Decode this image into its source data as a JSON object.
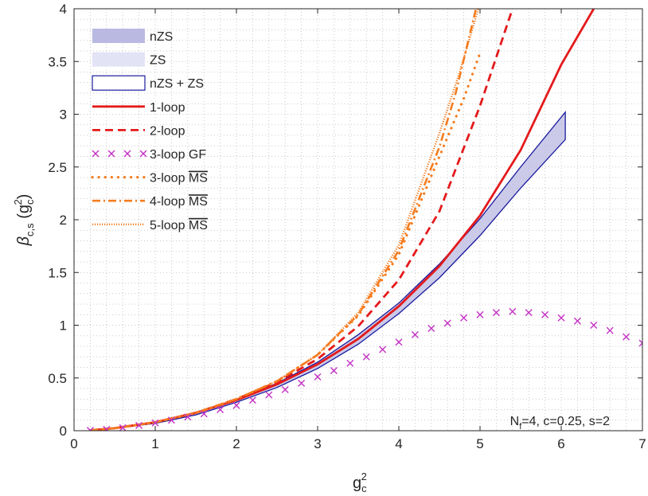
{
  "chart_data": {
    "type": "line",
    "xlabel_base": "g",
    "xlabel_sub": "c",
    "xlabel_sup": "2",
    "ylabel_base": "β",
    "ylabel_sub": "c,s",
    "ylabel_arg_open": " (g",
    "ylabel_arg_sub": "c",
    "ylabel_arg_sup": "2",
    "ylabel_arg_close": ")",
    "xlim": [
      0,
      7
    ],
    "ylim": [
      0,
      4
    ],
    "xticks": [
      0,
      1,
      2,
      3,
      4,
      5,
      6,
      7
    ],
    "xtick_labels": [
      "0",
      "1",
      "2",
      "3",
      "4",
      "5",
      "6",
      "7"
    ],
    "yticks": [
      0,
      0.5,
      1,
      1.5,
      2,
      2.5,
      3,
      3.5,
      4
    ],
    "ytick_labels": [
      "0",
      "0.5",
      "1",
      "1.5",
      "2",
      "2.5",
      "3",
      "3.5",
      "4"
    ],
    "grid": "minor-dotted",
    "annotation": {
      "base": "N",
      "sub": "f",
      "rest": "=4, c=0.25, s=2",
      "x": 6.85,
      "y": 0.1
    },
    "legend": {
      "placement": "top-left",
      "entries": [
        {
          "key": "nZS",
          "label": "nZS",
          "style": "band-dark"
        },
        {
          "key": "ZS",
          "label": "ZS",
          "style": "band-light"
        },
        {
          "key": "nZSZS",
          "label": "nZS + ZS",
          "style": "outline"
        },
        {
          "key": "loop1",
          "label": "1-loop",
          "style": "solid"
        },
        {
          "key": "loop2",
          "label": "2-loop",
          "style": "dashed"
        },
        {
          "key": "loop3gf",
          "label": "3-loop GF",
          "style": "cross"
        },
        {
          "key": "loop3ms",
          "label": "3-loop",
          "ms": "MS",
          "style": "dotted-big"
        },
        {
          "key": "loop4ms",
          "label": "4-loop",
          "ms": "MS",
          "style": "dashdot"
        },
        {
          "key": "loop5ms",
          "label": "5-loop",
          "ms": "MS",
          "style": "dotted-fine"
        }
      ]
    },
    "colors": {
      "red": "#e41a1c",
      "orange": "#f57c1f",
      "magenta": "#c531c5",
      "navy": "#1a1a9e",
      "band_dark": "#b9b9e2",
      "band_light": "#e3e3f6"
    },
    "series": [
      {
        "key": "loop1",
        "name": "1-loop",
        "x": [
          0.2,
          0.5,
          1,
          1.5,
          2,
          2.5,
          3,
          3.5,
          4,
          4.5,
          5,
          5.5,
          6,
          6.4
        ],
        "y": [
          0.004,
          0.024,
          0.08,
          0.17,
          0.29,
          0.44,
          0.63,
          0.87,
          1.18,
          1.56,
          2.04,
          2.66,
          3.47,
          4.0
        ]
      },
      {
        "key": "loop2",
        "name": "2-loop",
        "x": [
          0.2,
          0.5,
          1,
          1.5,
          2,
          2.5,
          3,
          3.5,
          4,
          4.5,
          5,
          5.4
        ],
        "y": [
          0.004,
          0.024,
          0.08,
          0.17,
          0.3,
          0.46,
          0.68,
          0.99,
          1.43,
          2.08,
          3.08,
          4.0
        ]
      },
      {
        "key": "loop4ms",
        "name": "4-loop MS",
        "x": [
          0.2,
          0.5,
          1,
          1.5,
          2,
          2.5,
          3,
          3.5,
          4,
          4.5,
          4.7,
          4.95
        ],
        "y": [
          0.004,
          0.024,
          0.08,
          0.17,
          0.3,
          0.47,
          0.72,
          1.1,
          1.71,
          2.69,
          3.2,
          4.0
        ]
      },
      {
        "key": "loop5ms",
        "name": "5-loop MS",
        "x": [
          0.2,
          0.5,
          1,
          1.5,
          2,
          2.5,
          3,
          3.5,
          4,
          4.5,
          4.75,
          4.98
        ],
        "y": [
          0.004,
          0.024,
          0.08,
          0.17,
          0.3,
          0.47,
          0.72,
          1.12,
          1.76,
          2.82,
          3.4,
          4.0
        ]
      },
      {
        "key": "loop3ms",
        "name": "3-loop MS",
        "x": [
          0.2,
          0.5,
          1,
          1.5,
          2,
          2.5,
          3,
          3.5,
          4,
          4.5,
          4.8,
          5.0
        ],
        "y": [
          0.004,
          0.024,
          0.08,
          0.17,
          0.3,
          0.47,
          0.72,
          1.09,
          1.67,
          2.6,
          3.15,
          3.58
        ]
      },
      {
        "key": "loop3gf",
        "name": "3-loop GF",
        "x": [
          0.2,
          0.4,
          0.6,
          0.8,
          1.0,
          1.2,
          1.4,
          1.6,
          1.8,
          2.0,
          2.2,
          2.4,
          2.6,
          2.8,
          3.0,
          3.2,
          3.4,
          3.6,
          3.8,
          4.0,
          4.2,
          4.4,
          4.6,
          4.8,
          5.0,
          5.2,
          5.4,
          5.6,
          5.8,
          6.0,
          6.2,
          6.4,
          6.6,
          6.8,
          7.0
        ],
        "y": [
          0.003,
          0.012,
          0.028,
          0.05,
          0.074,
          0.1,
          0.13,
          0.16,
          0.2,
          0.24,
          0.29,
          0.34,
          0.39,
          0.45,
          0.51,
          0.57,
          0.64,
          0.7,
          0.77,
          0.84,
          0.91,
          0.97,
          1.02,
          1.07,
          1.1,
          1.12,
          1.13,
          1.12,
          1.1,
          1.07,
          1.04,
          1.0,
          0.95,
          0.89,
          0.83
        ]
      }
    ],
    "bands": [
      {
        "key": "nZSZS",
        "name": "nZS + ZS",
        "x": [
          0.3,
          0.5,
          1,
          1.5,
          2,
          2.5,
          3,
          3.5,
          4,
          4.5,
          5,
          5.5,
          6.05
        ],
        "upper": [
          0.009,
          0.025,
          0.08,
          0.17,
          0.29,
          0.45,
          0.65,
          0.91,
          1.21,
          1.58,
          2.01,
          2.5,
          3.02
        ],
        "lower": [
          0.007,
          0.022,
          0.07,
          0.15,
          0.27,
          0.41,
          0.59,
          0.82,
          1.11,
          1.45,
          1.85,
          2.3,
          2.76
        ]
      }
    ]
  }
}
